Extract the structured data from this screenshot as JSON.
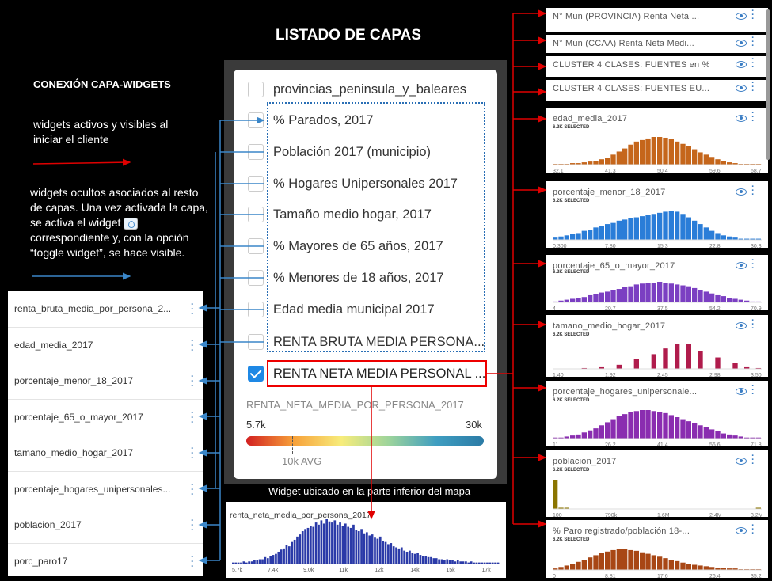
{
  "title": "LISTADO DE CAPAS",
  "connection_title": "CONEXIÓN CAPA-WIDGETS",
  "note_active": "widgets activos y visibles al iniciar el cliente",
  "note_hidden_a": "widgets ocultos  asociados al resto de capas. Una vez activada la capa,  se activa el widget",
  "note_hidden_b": "correspondiente y, con la opción “toggle widget”, se hace visible.",
  "left_widgets": [
    "renta_bruta_media_por_persona_2...",
    "edad_media_2017",
    "porcentaje_menor_18_2017",
    "porcentaje_65_o_mayor_2017",
    "tamano_medio_hogar_2017",
    "porcentaje_hogares_unipersonales...",
    "poblacion_2017",
    "porc_paro17"
  ],
  "layers": [
    {
      "label": "provincias_peninsula_y_baleares",
      "checked": false
    },
    {
      "label": "% Parados, 2017",
      "checked": false
    },
    {
      "label": "Población 2017 (municipio)",
      "checked": false
    },
    {
      "label": "% Hogares Unipersonales 2017",
      "checked": false
    },
    {
      "label": "Tamaño medio hogar, 2017",
      "checked": false
    },
    {
      "label": "% Mayores de 65 años, 2017",
      "checked": false
    },
    {
      "label": "% Menores de 18 años, 2017",
      "checked": false
    },
    {
      "label": "Edad media municipal 2017",
      "checked": false
    },
    {
      "label": "RENTA BRUTA MEDIA PERSONA...",
      "checked": false
    },
    {
      "label": "RENTA NETA MEDIA PERSONAL ...",
      "checked": true
    }
  ],
  "legend": {
    "attribute": "RENTA_NETA_MEDIA_POR_PERSONA_2017",
    "min": "5.7k",
    "max": "30k",
    "avg": "10k AVG",
    "avg_value": 10000,
    "min_value": 5700,
    "max_value": 30000
  },
  "bottom": {
    "caption": "Widget ubicado en la parte inferior del mapa",
    "title": "renta_neta_media_por_persona_2017",
    "ticks": [
      "5.7k",
      "7.4k",
      "9.0k",
      "11k",
      "12k",
      "14k",
      "15k",
      "17k"
    ],
    "bars": [
      1,
      1,
      1,
      1,
      2,
      1,
      2,
      2,
      3,
      3,
      4,
      4,
      6,
      5,
      7,
      8,
      9,
      11,
      13,
      14,
      17,
      16,
      20,
      22,
      25,
      27,
      30,
      32,
      33,
      35,
      34,
      38,
      36,
      40,
      37,
      41,
      39,
      38,
      40,
      36,
      38,
      35,
      37,
      34,
      33,
      36,
      31,
      30,
      32,
      28,
      29,
      26,
      27,
      24,
      23,
      25,
      21,
      20,
      18,
      19,
      16,
      15,
      14,
      15,
      12,
      11,
      12,
      10,
      9,
      10,
      8,
      7,
      7,
      6,
      6,
      5,
      5,
      4,
      4,
      3,
      4,
      3,
      3,
      2,
      3,
      2,
      2,
      2,
      1,
      2,
      1,
      1,
      1,
      1,
      1,
      1,
      1,
      1,
      1,
      1
    ]
  },
  "right_widgets": [
    {
      "title": "N° Mun (PROVINCIA) Renta Neta ...",
      "type": "category"
    },
    {
      "title": "N° Mun (CCAA) Renta Neta Medi...",
      "type": "category"
    },
    {
      "title": "CLUSTER 4 CLASES: FUENTES en %",
      "type": "category"
    },
    {
      "title": "CLUSTER 4 CLASES: FUENTES EU...",
      "type": "category"
    },
    {
      "title": "edad_media_2017",
      "selected": "6.2K SELECTED",
      "color": "#c5661b",
      "ticks": [
        "32.1",
        "41.3",
        "50.4",
        "59.6",
        "68.7"
      ],
      "bars": [
        1,
        1,
        1,
        2,
        2,
        3,
        4,
        5,
        7,
        9,
        13,
        17,
        21,
        26,
        30,
        32,
        34,
        36,
        36,
        35,
        33,
        30,
        27,
        24,
        20,
        16,
        13,
        10,
        7,
        5,
        3,
        2,
        1,
        1,
        1,
        1
      ]
    },
    {
      "title": "porcentaje_menor_18_2017",
      "selected": "6.2K SELECTED",
      "color": "#2a7dd8",
      "ticks": [
        "0.300",
        "7.80",
        "15.3",
        "22.8",
        "30.3"
      ],
      "bars": [
        2,
        3,
        4,
        5,
        6,
        8,
        9,
        11,
        12,
        14,
        15,
        17,
        18,
        19,
        20,
        21,
        22,
        23,
        24,
        25,
        26,
        25,
        23,
        20,
        17,
        14,
        11,
        8,
        6,
        4,
        3,
        2,
        1,
        1,
        1,
        1
      ]
    },
    {
      "title": "porcentaje_65_o_mayor_2017",
      "selected": "6.2K SELECTED",
      "color": "#7b3fc2",
      "ticks": [
        "4",
        "20.7",
        "37.5",
        "54.2",
        "70.9"
      ],
      "bars": [
        1,
        2,
        3,
        4,
        5,
        6,
        8,
        9,
        11,
        12,
        14,
        15,
        17,
        18,
        20,
        21,
        22,
        22,
        23,
        22,
        21,
        20,
        19,
        18,
        16,
        14,
        12,
        10,
        8,
        7,
        5,
        4,
        3,
        2,
        1,
        1
      ]
    },
    {
      "title": "tamano_medio_hogar_2017",
      "selected": "6.2K SELECTED",
      "color": "#b01c4c",
      "ticks": [
        "1.40",
        "1.92",
        "2.45",
        "2.98",
        "3.50"
      ],
      "bars": [
        0,
        0,
        0,
        0,
        0,
        1,
        0,
        0,
        2,
        0,
        0,
        5,
        0,
        0,
        12,
        0,
        0,
        18,
        0,
        25,
        0,
        30,
        0,
        30,
        0,
        22,
        0,
        0,
        14,
        0,
        0,
        7,
        0,
        2,
        0,
        1
      ]
    },
    {
      "title": "porcentaje_hogares_unipersonale...",
      "selected": "6.2K SELECTED",
      "color": "#8a2db0",
      "ticks": [
        "11",
        "26.2",
        "41.4",
        "56.6",
        "71.8"
      ],
      "bars": [
        1,
        1,
        2,
        3,
        4,
        6,
        8,
        10,
        13,
        16,
        19,
        22,
        24,
        26,
        27,
        28,
        28,
        27,
        26,
        25,
        23,
        21,
        19,
        17,
        15,
        13,
        11,
        9,
        7,
        5,
        4,
        3,
        2,
        1,
        1,
        1
      ]
    },
    {
      "title": "poblacion_2017",
      "selected": "6.2K SELECTED",
      "color": "#8a7400",
      "ticks": [
        "100",
        "790k",
        "1.6M",
        "2.4M",
        "3.2M"
      ],
      "bars": [
        24,
        1,
        1,
        0,
        0,
        0,
        0,
        0,
        0,
        0,
        0,
        0,
        0,
        0,
        0,
        0,
        0,
        0,
        0,
        0,
        0,
        0,
        0,
        0,
        0,
        0,
        0,
        0,
        0,
        0,
        0,
        0,
        0,
        0,
        0,
        1
      ]
    },
    {
      "title": "% Paro registrado/población 18-...",
      "selected": "6.2K SELECTED",
      "color": "#a84715",
      "ticks": [
        "0",
        "8.81",
        "17.6",
        "26.4",
        "35.2"
      ],
      "bars": [
        2,
        4,
        6,
        8,
        11,
        14,
        17,
        20,
        23,
        25,
        27,
        28,
        28,
        27,
        26,
        24,
        22,
        20,
        18,
        16,
        14,
        12,
        10,
        8,
        7,
        6,
        5,
        4,
        3,
        3,
        2,
        2,
        1,
        1,
        1,
        1
      ]
    }
  ],
  "colors": {
    "accent": "#1e88e5",
    "arrow_blue": "#3a86c8",
    "arrow_red": "#e00000"
  }
}
